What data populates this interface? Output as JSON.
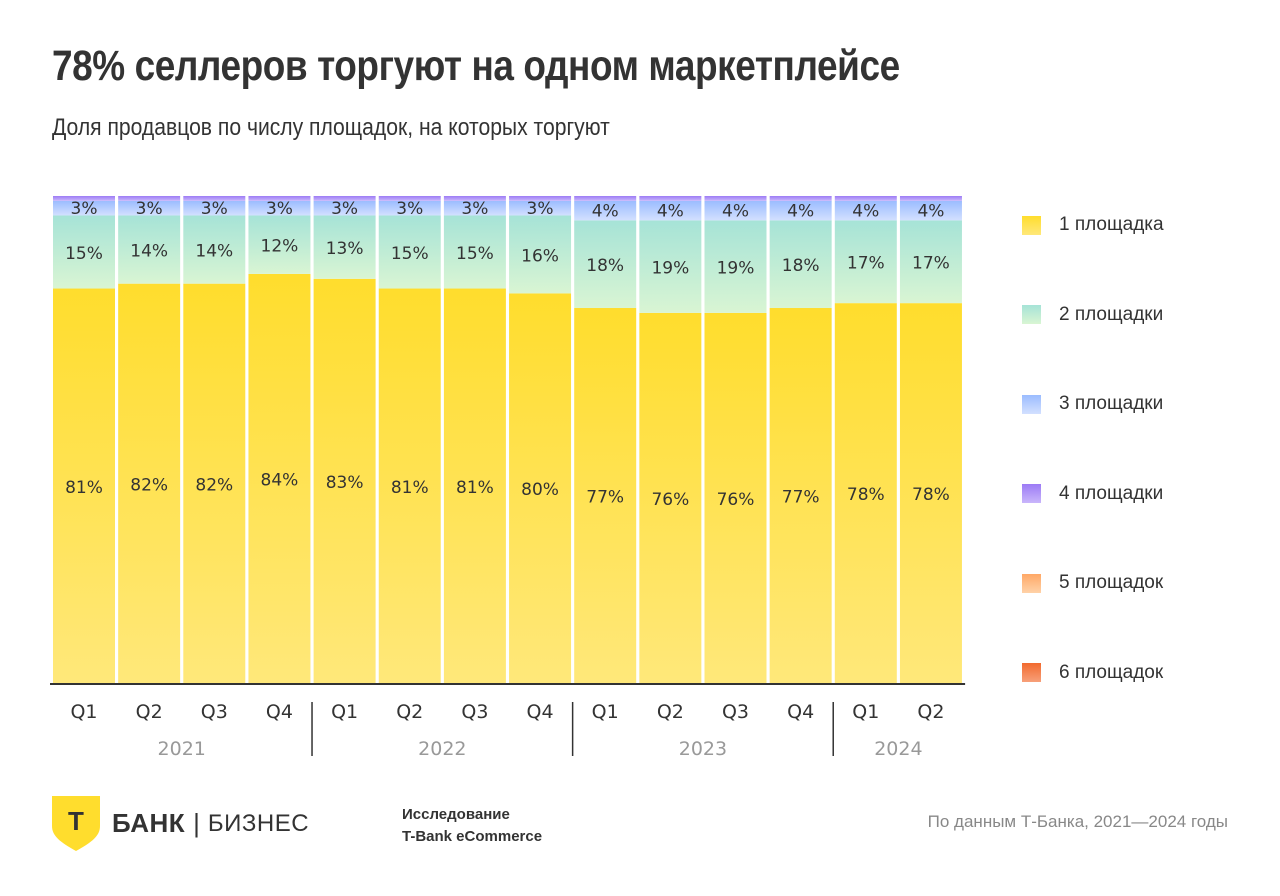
{
  "header": {
    "title": "78% селлеров торгуют на одном маркетплейсе",
    "subtitle": "Доля продавцов по числу площадок, на которых торгуют"
  },
  "chart_data": {
    "type": "bar",
    "stacked": true,
    "title": "78% селлеров торгуют на одном маркетплейсе",
    "subtitle": "Доля продавцов по числу площадок, на которых торгуют",
    "xlabel": "",
    "ylabel": "",
    "ylim": [
      0,
      100
    ],
    "grid": false,
    "legend_position": "right",
    "categories": [
      "Q1",
      "Q2",
      "Q3",
      "Q4",
      "Q1",
      "Q2",
      "Q3",
      "Q4",
      "Q1",
      "Q2",
      "Q3",
      "Q4",
      "Q1",
      "Q2"
    ],
    "groups": [
      {
        "label": "2021",
        "count": 4
      },
      {
        "label": "2022",
        "count": 4
      },
      {
        "label": "2023",
        "count": 4
      },
      {
        "label": "2024",
        "count": 2
      }
    ],
    "series": [
      {
        "name": "1 площадка",
        "color_top": "#FFDD2D",
        "color_bottom": "#FFE87A",
        "values": [
          81,
          82,
          82,
          84,
          83,
          81,
          81,
          80,
          77,
          76,
          76,
          77,
          78,
          78
        ],
        "show_labels": true
      },
      {
        "name": "2 площадки",
        "color_top": "#A6E3D7",
        "color_bottom": "#D9F5D3",
        "values": [
          15,
          14,
          14,
          12,
          13,
          15,
          15,
          16,
          18,
          19,
          19,
          18,
          17,
          17
        ],
        "show_labels": true
      },
      {
        "name": "3 площадки",
        "color_top": "#9BBCFF",
        "color_bottom": "#D3E0FF",
        "values": [
          3,
          3,
          3,
          3,
          3,
          3,
          3,
          3,
          4,
          4,
          4,
          4,
          4,
          4
        ],
        "show_labels": true
      },
      {
        "name": "4 площадки",
        "color_top": "#9C7BF5",
        "color_bottom": "#C9B6FB",
        "values": [
          1,
          1,
          1,
          1,
          1,
          1,
          1,
          1,
          1,
          1,
          1,
          1,
          1,
          1
        ],
        "show_labels": false
      },
      {
        "name": "5 площадок",
        "color_top": "#FFA866",
        "color_bottom": "#FFD2A8",
        "values": [
          0,
          0,
          0,
          0,
          0,
          0,
          0,
          0,
          0,
          0,
          0,
          0,
          0,
          0
        ],
        "show_labels": false
      },
      {
        "name": "6 площадок",
        "color_top": "#F26A2E",
        "color_bottom": "#F7A07A",
        "values": [
          0,
          0,
          0,
          0,
          0,
          0,
          0,
          0,
          0,
          0,
          0,
          0,
          0,
          0
        ],
        "show_labels": false
      }
    ]
  },
  "footer": {
    "logo_letter": "Т",
    "brand": "БАНК",
    "brand_separator": "|",
    "brand_sub": "БИЗНЕС",
    "study_line1": "Исследование",
    "study_line2": "T-Bank eCommerce",
    "source": "По данным Т-Банка, 2021—2024 годы",
    "logo_color": "#FFDD2D"
  }
}
